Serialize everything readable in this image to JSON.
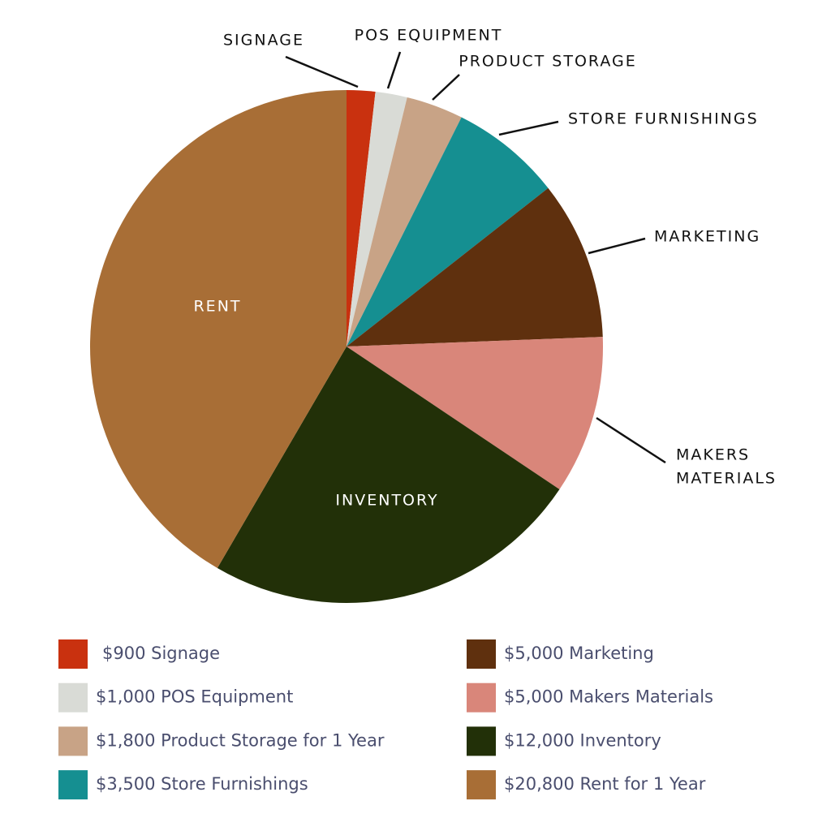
{
  "chart_data": {
    "type": "pie",
    "categories": [
      "$900 Signage",
      "$1,000 POS Equipment",
      "$1,800 Product Storage for 1 Year",
      "$3,500 Store Furnishings",
      "$5,000 Marketing",
      "$5,000 Makers Materials",
      "$12,000 Inventory",
      "$20,800 Rent for 1 Year"
    ],
    "values": [
      900,
      1000,
      1800,
      3500,
      5000,
      5000,
      12000,
      20800
    ],
    "colors": [
      "#c9310f",
      "#d9dbd6",
      "#c8a386",
      "#158f91",
      "#5f300e",
      "#d9867a",
      "#223008",
      "#a86e36"
    ],
    "slice_labels": [
      [
        "SIGNAGE"
      ],
      [
        "POS EQUIPMENT"
      ],
      [
        "PRODUCT STORAGE"
      ],
      [
        "STORE FURNISHINGS"
      ],
      [
        "MARKETING"
      ],
      [
        "MAKERS",
        "MATERIALS"
      ],
      [
        "INVENTORY"
      ],
      [
        "RENT"
      ]
    ]
  }
}
